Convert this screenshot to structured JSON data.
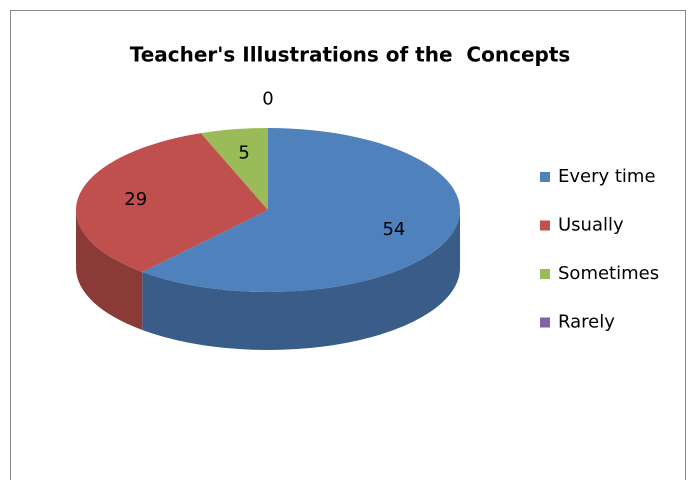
{
  "chart_data": {
    "type": "pie3d",
    "title": "Teacher's Illustrations of the  Concepts",
    "categories": [
      "Every time",
      "Usually",
      "Sometimes",
      "Rarely"
    ],
    "values": [
      54,
      29,
      5,
      0
    ],
    "colors": [
      "#4f81bd",
      "#c0504d",
      "#9bbb59",
      "#8064a2"
    ],
    "legend": "right"
  }
}
